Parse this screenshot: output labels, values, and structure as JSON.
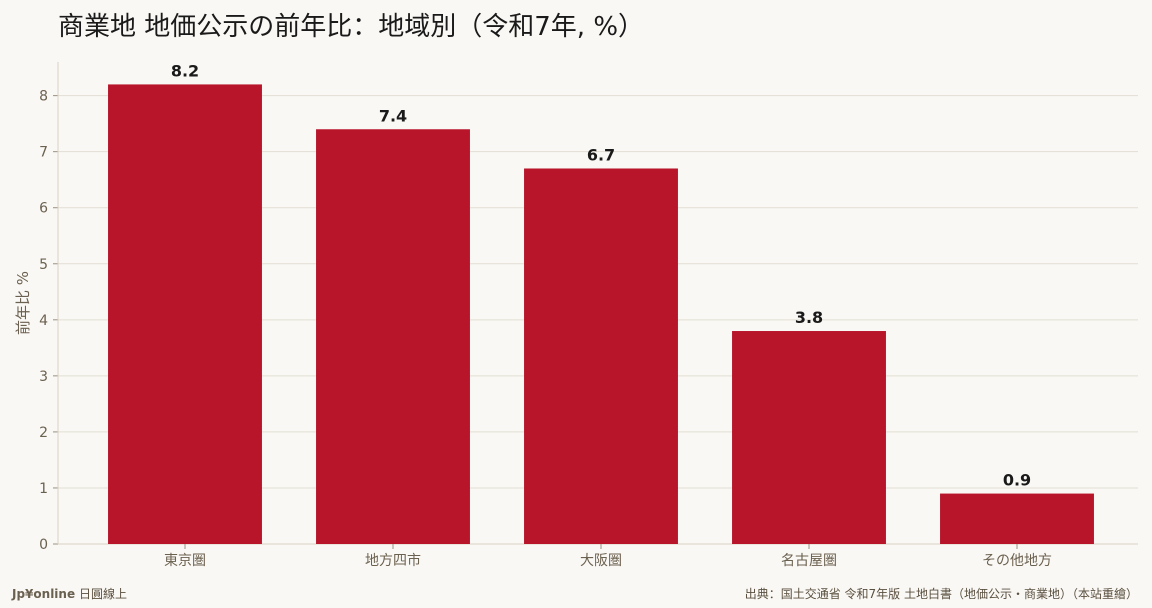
{
  "title": "商業地 地価公示の前年比：地域別（令和7年, %）",
  "footer": {
    "brand": "Jp¥online",
    "brand_suffix": "日圓線上",
    "source": "出典：国土交通省 令和7年版 土地白書（地価公示・商業地）（本站重繪）"
  },
  "colors": {
    "bar": "#b8152b",
    "background": "#faf8f4",
    "grid": "#e2ddd4",
    "axis_text": "#6b6150"
  },
  "chart_data": {
    "type": "bar",
    "title": "商業地 地価公示の前年比：地域別（令和7年, %）",
    "categories": [
      "東京圏",
      "地方四市",
      "大阪圏",
      "名古屋圏",
      "その他地方"
    ],
    "values": [
      8.2,
      7.4,
      6.7,
      3.8,
      0.9
    ],
    "data_labels": [
      "8.2",
      "7.4",
      "6.7",
      "3.8",
      "0.9"
    ],
    "xlabel": "",
    "ylabel": "前年比 %",
    "ylim": [
      0,
      8.6
    ],
    "yticks": [
      0,
      1,
      2,
      3,
      4,
      5,
      6,
      7,
      8
    ],
    "grid": true,
    "legend": "none"
  }
}
